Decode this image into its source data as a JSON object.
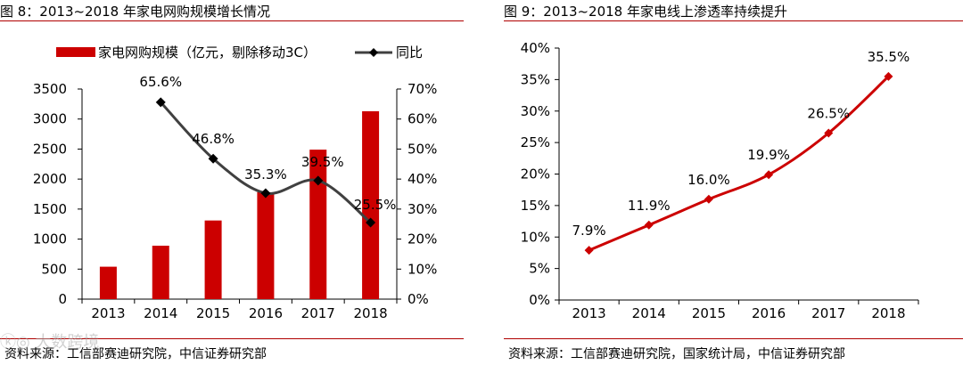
{
  "left_panel": {
    "title": "图 8：2013~2018 年家电网购规模增长情况",
    "source": "资料来源：工信部赛迪研究院，中信证券研究部"
  },
  "right_panel": {
    "title": "图 9：2013~2018 年家电线上渗透率持续提升",
    "source": "资料来源：工信部赛迪研究院，国家统计局，中信证券研究部"
  },
  "watermark": "ⓚ◎ 大数跨境",
  "colors": {
    "bar": "#cc0000",
    "line_dark": "#404040",
    "line_red": "#cc0000",
    "rule": "#b00000"
  },
  "chart_data": [
    {
      "type": "bar+line",
      "title": "图 8：2013~2018 年家电网购规模增长情况",
      "categories": [
        "2013",
        "2014",
        "2015",
        "2016",
        "2017",
        "2018"
      ],
      "series": [
        {
          "name": "家电网购规模（亿元，剔除移动3C）",
          "type": "bar",
          "axis": "left",
          "values": [
            540,
            890,
            1310,
            1780,
            2490,
            3130
          ]
        },
        {
          "name": "同比",
          "type": "line",
          "axis": "right",
          "values": [
            null,
            65.6,
            46.8,
            35.3,
            39.5,
            25.5
          ],
          "labels": [
            "",
            "65.6%",
            "46.8%",
            "35.3%",
            "39.5%",
            "25.5%"
          ]
        }
      ],
      "left_axis": {
        "ylim": [
          0,
          3500
        ],
        "ticks": [
          "0",
          "500",
          "1000",
          "1500",
          "2000",
          "2500",
          "3000",
          "3500"
        ]
      },
      "right_axis": {
        "ylim": [
          0,
          70
        ],
        "ticks": [
          "0%",
          "10%",
          "20%",
          "30%",
          "40%",
          "50%",
          "60%",
          "70%"
        ]
      },
      "legend": {
        "placement": "top",
        "items": [
          "家电网购规模（亿元，剔除移动3C）",
          "同比"
        ]
      }
    },
    {
      "type": "line",
      "title": "图 9：2013~2018 年家电线上渗透率持续提升",
      "categories": [
        "2013",
        "2014",
        "2015",
        "2016",
        "2017",
        "2018"
      ],
      "series": [
        {
          "name": "家电线上渗透率",
          "values": [
            7.9,
            11.9,
            16.0,
            19.9,
            26.5,
            35.5
          ],
          "labels": [
            "7.9%",
            "11.9%",
            "16.0%",
            "19.9%",
            "26.5%",
            "35.5%"
          ]
        }
      ],
      "y_axis": {
        "ylim": [
          0,
          40
        ],
        "ticks": [
          "0%",
          "5%",
          "10%",
          "15%",
          "20%",
          "25%",
          "30%",
          "35%",
          "40%"
        ]
      }
    }
  ]
}
